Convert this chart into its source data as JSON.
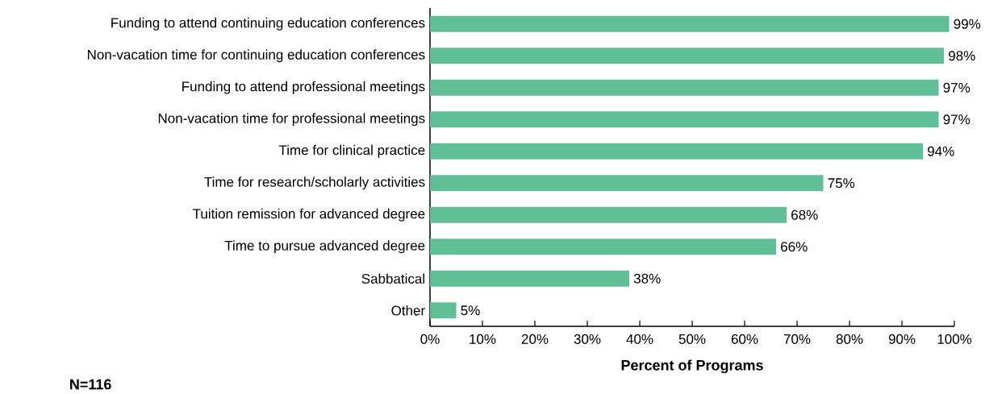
{
  "chart_data": {
    "type": "bar",
    "orientation": "horizontal",
    "xlabel": "Percent of Programs",
    "categories": [
      "Funding to attend continuing education conferences",
      "Non-vacation time for continuing education conferences",
      "Funding to attend professional meetings",
      "Non-vacation time for professional meetings",
      "Time for clinical practice",
      "Time for research/scholarly activities",
      "Tuition remission for advanced degree",
      "Time to pursue advanced degree",
      "Sabbatical",
      "Other"
    ],
    "values": [
      99,
      98,
      97,
      97,
      94,
      75,
      68,
      66,
      38,
      5
    ],
    "value_labels": [
      "99%",
      "98%",
      "97%",
      "97%",
      "94%",
      "75%",
      "68%",
      "66%",
      "38%",
      "5%"
    ],
    "color": "#60bf97",
    "xlim": [
      0,
      100
    ],
    "xticks": [
      {
        "value": 0,
        "label": "0%"
      },
      {
        "value": 10,
        "label": "10%"
      },
      {
        "value": 20,
        "label": "20%"
      },
      {
        "value": 30,
        "label": "30%"
      },
      {
        "value": 40,
        "label": "40%"
      },
      {
        "value": 50,
        "label": "50%"
      },
      {
        "value": 60,
        "label": "60%"
      },
      {
        "value": 70,
        "label": "70%"
      },
      {
        "value": 80,
        "label": "80%"
      },
      {
        "value": 90,
        "label": "90%"
      },
      {
        "value": 100,
        "label": "100%"
      }
    ],
    "grid": false,
    "annotations": [
      "N=116"
    ]
  }
}
